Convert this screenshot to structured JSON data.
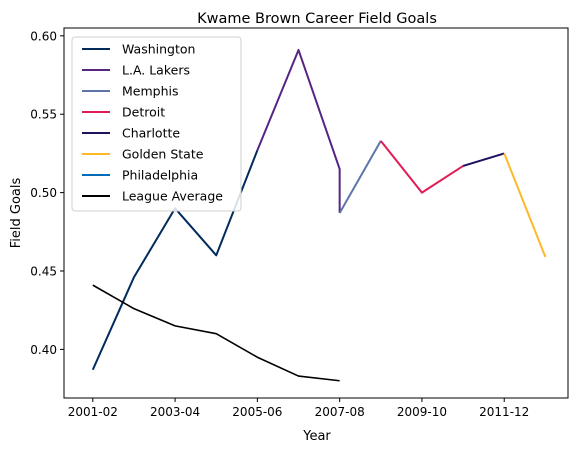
{
  "chart_data": {
    "type": "line",
    "title": "Kwame Brown Career Field Goals",
    "xlabel": "Year",
    "ylabel": "Field Goals",
    "x_tick_labels": [
      "2001-02",
      "2003-04",
      "2005-06",
      "2007-08",
      "2009-10",
      "2011-12"
    ],
    "x_ticks": [
      0,
      2,
      4,
      6,
      8,
      10
    ],
    "xlim": [
      -0.7,
      11.55
    ],
    "ylim": [
      0.369,
      0.605
    ],
    "y_ticks": [
      0.4,
      0.45,
      0.5,
      0.55,
      0.6
    ],
    "y_tick_labels": [
      "0.40",
      "0.45",
      "0.50",
      "0.55",
      "0.60"
    ],
    "grid": false,
    "legend_position": "top-left",
    "series": [
      {
        "name": "Washington",
        "color": "#002B5C",
        "x": [
          0,
          1,
          2,
          3,
          4
        ],
        "y": [
          0.387,
          0.446,
          0.49,
          0.46,
          0.527
        ]
      },
      {
        "name": "L.A. Lakers",
        "color": "#552583",
        "x": [
          4,
          5,
          6,
          6
        ],
        "y": [
          0.527,
          0.591,
          0.515,
          0.487
        ]
      },
      {
        "name": "Memphis",
        "color": "#5D76A9",
        "x": [
          6,
          7
        ],
        "y": [
          0.487,
          0.533
        ]
      },
      {
        "name": "Detroit",
        "color": "#E31B54",
        "x": [
          7,
          8,
          9
        ],
        "y": [
          0.533,
          0.5,
          0.517
        ]
      },
      {
        "name": "Charlotte",
        "color": "#1D1160",
        "x": [
          9,
          10
        ],
        "y": [
          0.517,
          0.525
        ]
      },
      {
        "name": "Golden State",
        "color": "#FDB927",
        "x": [
          10,
          11
        ],
        "y": [
          0.525,
          0.459
        ]
      },
      {
        "name": "Philadelphia",
        "color": "#006BB6",
        "x": [],
        "y": []
      },
      {
        "name": "League Average",
        "color": "#000000",
        "x": [
          0,
          1,
          2,
          3,
          4,
          5,
          6
        ],
        "y": [
          0.441,
          0.426,
          0.415,
          0.41,
          0.395,
          0.383,
          0.38
        ]
      }
    ]
  }
}
